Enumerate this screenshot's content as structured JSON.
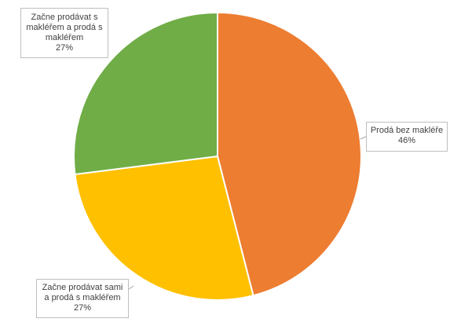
{
  "chart_data": {
    "type": "pie",
    "title": "",
    "slices": [
      {
        "label": "Prodá bez makléře",
        "percent_label": "46%",
        "value": 46,
        "color": "#ED7D31"
      },
      {
        "label": "Začne prodávat sami a prodá s makléřem",
        "percent_label": "27%",
        "value": 27,
        "color": "#FFC000"
      },
      {
        "label": "Začne prodávat s makléřem a prodá s makléřem",
        "percent_label": "27%",
        "value": 27,
        "color": "#70AD47"
      }
    ],
    "legend": "none",
    "data_labels": "callouts"
  }
}
